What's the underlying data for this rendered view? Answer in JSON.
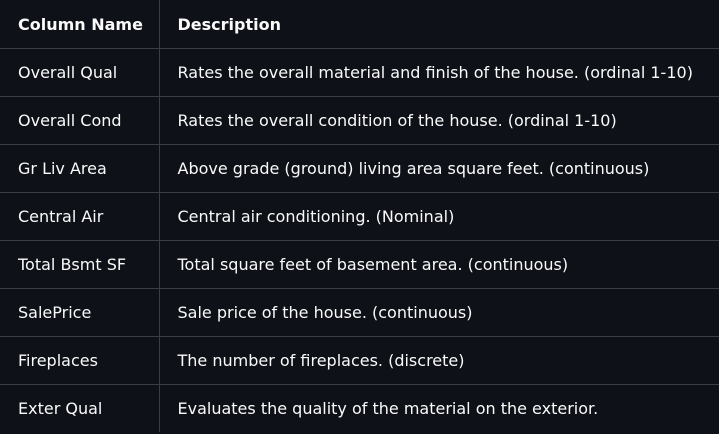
{
  "table": {
    "headers": [
      "Column Name",
      "Description"
    ],
    "rows": [
      [
        "Overall Qual",
        "Rates the overall material and finish of the house. (ordinal 1-10)"
      ],
      [
        "Overall Cond",
        "Rates the overall condition of the house. (ordinal 1-10)"
      ],
      [
        "Gr Liv Area",
        "Above grade (ground) living area square feet. (continuous)"
      ],
      [
        "Central Air",
        "Central air conditioning. (Nominal)"
      ],
      [
        "Total Bsmt SF",
        "Total square feet of basement area. (continuous)"
      ],
      [
        "SalePrice",
        "Sale price of the house. (continuous)"
      ],
      [
        "Fireplaces",
        "The number of fireplaces. (discrete)"
      ],
      [
        "Exter Qual",
        "Evaluates the quality of the material on the exterior."
      ]
    ]
  },
  "colors": {
    "background": "#0e1117",
    "text": "#fafafa",
    "border": "#3a3d45"
  }
}
